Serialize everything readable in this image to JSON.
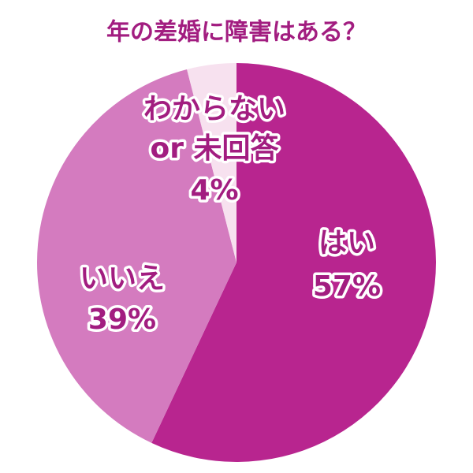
{
  "chart_data": {
    "type": "pie",
    "title": "年の差婚に障害はある？",
    "categories": [
      "はい",
      "いいえ",
      "わからない\nor 未回答"
    ],
    "values": [
      57,
      39,
      4
    ],
    "value_labels": [
      "57%",
      "39%",
      "4%"
    ],
    "colors": [
      "#b8258f",
      "#d47bbf",
      "#f7e1ef"
    ]
  }
}
